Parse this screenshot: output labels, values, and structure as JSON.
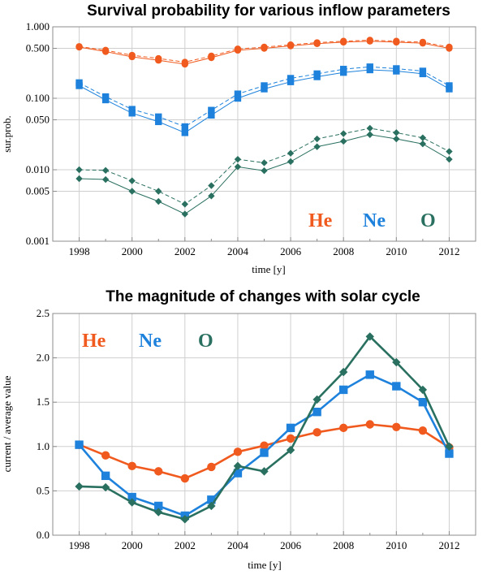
{
  "chart_data": [
    {
      "type": "line",
      "title": "Survival probability for various inflow parameters",
      "xlabel": "time [y]",
      "ylabel": "sur.prob.",
      "yscale": "log",
      "ylim": [
        0.001,
        1.0
      ],
      "xlim": [
        1997,
        2013
      ],
      "grid": true,
      "x_ticks": [
        1998,
        2000,
        2002,
        2004,
        2006,
        2008,
        2010,
        2012
      ],
      "y_ticks": [
        {
          "value": 0.001,
          "label": "0.001"
        },
        {
          "value": 0.005,
          "label": "0.005"
        },
        {
          "value": 0.01,
          "label": "0.010"
        },
        {
          "value": 0.05,
          "label": "0.050"
        },
        {
          "value": 0.1,
          "label": "0.100"
        },
        {
          "value": 0.5,
          "label": "0.500"
        },
        {
          "value": 1.0,
          "label": "1.000"
        }
      ],
      "x": [
        1998,
        1999,
        2000,
        2001,
        2002,
        2003,
        2004,
        2005,
        2006,
        2007,
        2008,
        2009,
        2010,
        2011,
        2012
      ],
      "series": [
        {
          "name": "He",
          "color": "#f05a1e",
          "marker": "circle",
          "style": "solid",
          "values": [
            0.52,
            0.45,
            0.38,
            0.34,
            0.3,
            0.37,
            0.47,
            0.5,
            0.54,
            0.58,
            0.61,
            0.63,
            0.61,
            0.59,
            0.5
          ]
        },
        {
          "name": "He",
          "color": "#f05a1e",
          "marker": "circle",
          "style": "dashed",
          "values": [
            0.53,
            0.47,
            0.4,
            0.36,
            0.32,
            0.39,
            0.49,
            0.52,
            0.56,
            0.6,
            0.63,
            0.65,
            0.63,
            0.61,
            0.52
          ]
        },
        {
          "name": "Ne",
          "color": "#1e82dc",
          "marker": "square",
          "style": "solid",
          "values": [
            0.15,
            0.095,
            0.062,
            0.047,
            0.033,
            0.058,
            0.1,
            0.135,
            0.17,
            0.2,
            0.23,
            0.25,
            0.24,
            0.22,
            0.135
          ]
        },
        {
          "name": "Ne",
          "color": "#1e82dc",
          "marker": "square",
          "style": "dashed",
          "values": [
            0.165,
            0.105,
            0.07,
            0.055,
            0.04,
            0.068,
            0.115,
            0.15,
            0.19,
            0.22,
            0.255,
            0.275,
            0.26,
            0.24,
            0.15
          ]
        },
        {
          "name": "O",
          "color": "#2a7060",
          "marker": "diamond",
          "style": "solid",
          "values": [
            0.0075,
            0.0073,
            0.005,
            0.0036,
            0.0024,
            0.0043,
            0.011,
            0.0097,
            0.013,
            0.021,
            0.025,
            0.031,
            0.027,
            0.023,
            0.014
          ]
        },
        {
          "name": "O",
          "color": "#2a7060",
          "marker": "diamond",
          "style": "dashed",
          "values": [
            0.01,
            0.0098,
            0.007,
            0.005,
            0.0033,
            0.006,
            0.014,
            0.0125,
            0.017,
            0.027,
            0.032,
            0.038,
            0.033,
            0.028,
            0.018
          ]
        }
      ],
      "annotations": [
        {
          "text": "He",
          "color": "#f05a1e"
        },
        {
          "text": "Ne",
          "color": "#1e82dc"
        },
        {
          "text": "O",
          "color": "#2a7060"
        }
      ]
    },
    {
      "type": "line",
      "title": "The magnitude of changes  with solar cycle",
      "xlabel": "time [y]",
      "ylabel": "current / average  value",
      "ylim": [
        0.0,
        2.5
      ],
      "xlim": [
        1997,
        2013
      ],
      "grid": true,
      "x_ticks": [
        1998,
        2000,
        2002,
        2004,
        2006,
        2008,
        2010,
        2012
      ],
      "y_ticks": [
        {
          "value": 0.0,
          "label": "0.0"
        },
        {
          "value": 0.5,
          "label": "0.5"
        },
        {
          "value": 1.0,
          "label": "1.0"
        },
        {
          "value": 1.5,
          "label": "1.5"
        },
        {
          "value": 2.0,
          "label": "2.0"
        },
        {
          "value": 2.5,
          "label": "2.5"
        }
      ],
      "x": [
        1998,
        1999,
        2000,
        2001,
        2002,
        2003,
        2004,
        2005,
        2006,
        2007,
        2008,
        2009,
        2010,
        2011,
        2012
      ],
      "series": [
        {
          "name": "He",
          "color": "#f05a1e",
          "marker": "circle",
          "style": "solid",
          "values": [
            1.02,
            0.9,
            0.78,
            0.72,
            0.64,
            0.77,
            0.94,
            1.01,
            1.09,
            1.16,
            1.21,
            1.25,
            1.22,
            1.18,
            0.99
          ]
        },
        {
          "name": "Ne",
          "color": "#1e82dc",
          "marker": "square",
          "style": "solid",
          "values": [
            1.02,
            0.67,
            0.43,
            0.33,
            0.22,
            0.4,
            0.7,
            0.93,
            1.21,
            1.39,
            1.64,
            1.81,
            1.68,
            1.5,
            0.92
          ]
        },
        {
          "name": "O",
          "color": "#2a7060",
          "marker": "diamond",
          "style": "solid",
          "values": [
            0.55,
            0.54,
            0.37,
            0.26,
            0.18,
            0.33,
            0.78,
            0.72,
            0.96,
            1.53,
            1.84,
            2.24,
            1.95,
            1.64,
            1.0
          ]
        }
      ],
      "annotations": [
        {
          "text": "He",
          "color": "#f05a1e"
        },
        {
          "text": "Ne",
          "color": "#1e82dc"
        },
        {
          "text": "O",
          "color": "#2a7060"
        }
      ]
    }
  ]
}
